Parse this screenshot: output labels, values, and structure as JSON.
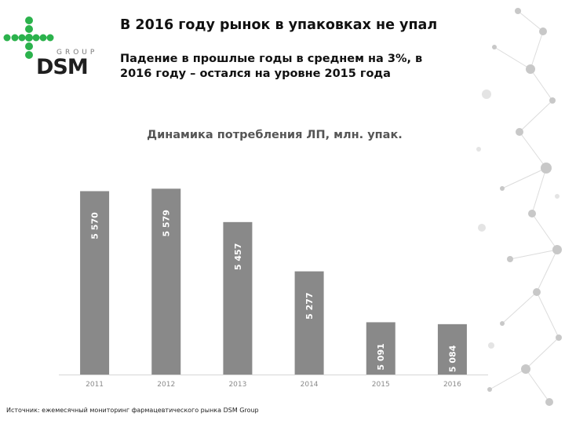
{
  "slide": {
    "title": "В 2016 году рынок в упаковках не упал",
    "subtitle_line1": "Падение в прошлые годы в среднем на 3%, в",
    "subtitle_line2": "2016 году – остался на уровне 2015 года",
    "source": "Источник: ежемесячный мониторинг фармацевтического рынка DSM Group"
  },
  "logo": {
    "group_text": "GROUP",
    "dsm_text": "DSM",
    "colors": {
      "green": "#2bb24c",
      "dark": "#1f1f1f",
      "gray": "#7a7a7a"
    }
  },
  "chart_data": {
    "type": "bar",
    "title": "Динамика потребления ЛП, млн. упак.",
    "categories": [
      "2011",
      "2012",
      "2013",
      "2014",
      "2015",
      "2016"
    ],
    "values": [
      5570,
      5579,
      5457,
      5277,
      5091,
      5084
    ],
    "value_labels": [
      "5 570",
      "5 579",
      "5 457",
      "5 277",
      "5 091",
      "5 084"
    ],
    "ylim": [
      4900,
      5600
    ],
    "xlabel": "",
    "ylabel": "",
    "grid": false,
    "colors": {
      "bar": "#898989",
      "baseline": "#d6d6d6",
      "label": "#ffffff",
      "tick": "#8a8a8a"
    }
  }
}
